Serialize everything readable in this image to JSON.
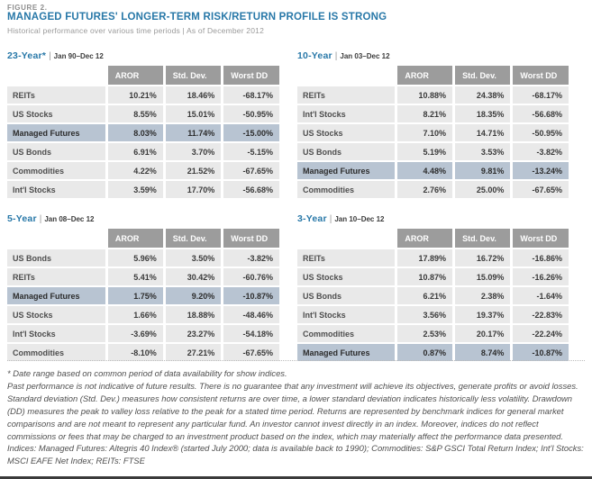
{
  "header": {
    "figure_label": "FIGURE 2.",
    "title": "MANAGED FUTURES' LONGER-TERM RISK/RETURN PROFILE IS STRONG",
    "subtitle": "Historical performance over various time periods | As of December 2012"
  },
  "colors": {
    "accent_blue": "#2878a8",
    "header_cell_gray": "#9c9c9c",
    "cell_gray": "#e9e9e9",
    "highlight_blue_gray": "#b8c4d2"
  },
  "tables": [
    {
      "period": "23-Year*",
      "range": "Jan 90–Dec 12",
      "columns": [
        "AROR",
        "Std. Dev.",
        "Worst DD"
      ],
      "rows": [
        {
          "label": "REITs",
          "values": [
            "10.21%",
            "18.46%",
            "-68.17%"
          ],
          "highlight": false
        },
        {
          "label": "US Stocks",
          "values": [
            "8.55%",
            "15.01%",
            "-50.95%"
          ],
          "highlight": false
        },
        {
          "label": "Managed Futures",
          "values": [
            "8.03%",
            "11.74%",
            "-15.00%"
          ],
          "highlight": true
        },
        {
          "label": "US Bonds",
          "values": [
            "6.91%",
            "3.70%",
            "-5.15%"
          ],
          "highlight": false
        },
        {
          "label": "Commodities",
          "values": [
            "4.22%",
            "21.52%",
            "-67.65%"
          ],
          "highlight": false
        },
        {
          "label": "Int'l Stocks",
          "values": [
            "3.59%",
            "17.70%",
            "-56.68%"
          ],
          "highlight": false
        }
      ]
    },
    {
      "period": "10-Year",
      "range": "Jan 03–Dec 12",
      "columns": [
        "AROR",
        "Std. Dev.",
        "Worst DD"
      ],
      "rows": [
        {
          "label": "REITs",
          "values": [
            "10.88%",
            "24.38%",
            "-68.17%"
          ],
          "highlight": false
        },
        {
          "label": "Int'l Stocks",
          "values": [
            "8.21%",
            "18.35%",
            "-56.68%"
          ],
          "highlight": false
        },
        {
          "label": "US Stocks",
          "values": [
            "7.10%",
            "14.71%",
            "-50.95%"
          ],
          "highlight": false
        },
        {
          "label": "US Bonds",
          "values": [
            "5.19%",
            "3.53%",
            "-3.82%"
          ],
          "highlight": false
        },
        {
          "label": "Managed Futures",
          "values": [
            "4.48%",
            "9.81%",
            "-13.24%"
          ],
          "highlight": true
        },
        {
          "label": "Commodities",
          "values": [
            "2.76%",
            "25.00%",
            "-67.65%"
          ],
          "highlight": false
        }
      ]
    },
    {
      "period": "5-Year",
      "range": "Jan 08–Dec 12",
      "columns": [
        "AROR",
        "Std. Dev.",
        "Worst DD"
      ],
      "rows": [
        {
          "label": "US Bonds",
          "values": [
            "5.96%",
            "3.50%",
            "-3.82%"
          ],
          "highlight": false
        },
        {
          "label": "REITs",
          "values": [
            "5.41%",
            "30.42%",
            "-60.76%"
          ],
          "highlight": false
        },
        {
          "label": "Managed Futures",
          "values": [
            "1.75%",
            "9.20%",
            "-10.87%"
          ],
          "highlight": true
        },
        {
          "label": "US Stocks",
          "values": [
            "1.66%",
            "18.88%",
            "-48.46%"
          ],
          "highlight": false
        },
        {
          "label": "Int'l Stocks",
          "values": [
            "-3.69%",
            "23.27%",
            "-54.18%"
          ],
          "highlight": false
        },
        {
          "label": "Commodities",
          "values": [
            "-8.10%",
            "27.21%",
            "-67.65%"
          ],
          "highlight": false
        }
      ]
    },
    {
      "period": "3-Year",
      "range": "Jan 10–Dec 12",
      "columns": [
        "AROR",
        "Std. Dev.",
        "Worst DD"
      ],
      "rows": [
        {
          "label": "REITs",
          "values": [
            "17.89%",
            "16.72%",
            "-16.86%"
          ],
          "highlight": false
        },
        {
          "label": "US Stocks",
          "values": [
            "10.87%",
            "15.09%",
            "-16.26%"
          ],
          "highlight": false
        },
        {
          "label": "US Bonds",
          "values": [
            "6.21%",
            "2.38%",
            "-1.64%"
          ],
          "highlight": false
        },
        {
          "label": "Int'l Stocks",
          "values": [
            "3.56%",
            "19.37%",
            "-22.83%"
          ],
          "highlight": false
        },
        {
          "label": "Commodities",
          "values": [
            "2.53%",
            "20.17%",
            "-22.24%"
          ],
          "highlight": false
        },
        {
          "label": "Managed Futures",
          "values": [
            "0.87%",
            "8.74%",
            "-10.87%"
          ],
          "highlight": true
        }
      ]
    }
  ],
  "footnote": {
    "asterisk_note": "* Date range based on common period of data availability for show indices.",
    "body": "Past performance is not indicative of future results. There is no guarantee that any investment will achieve its objectives, generate profits or avoid losses. Standard deviation (Std. Dev.) measures how consistent returns are over time, a lower standard deviation indicates historically less volatility. Drawdown (DD) measures the peak to valley loss relative to the peak for a stated time period. Returns are represented by benchmark indices for general market comparisons and are not meant to represent any particular fund. An investor cannot invest directly in an index. Moreover, indices do not reflect commissions or fees that may be charged to an investment product based on the index, which may materially affect the performance data presented. Indices: Managed Futures: Altegris 40 Index® (started July 2000; data is available back to 1990); Commodities: S&P GSCI Total Return Index; Int'l Stocks: MSCI EAFE Net Index; REITs: FTSE"
  }
}
